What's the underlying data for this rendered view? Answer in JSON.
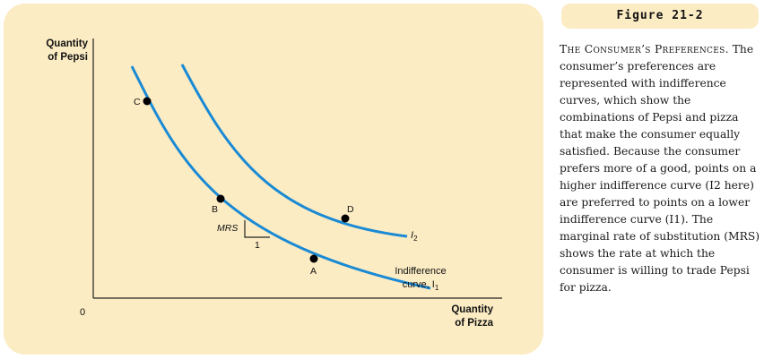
{
  "figure": {
    "header": "Figure 21-2",
    "caption_title": "The Consumer’s Preferences.",
    "caption_text": "The consumer’s preferences are represented with indifference curves, which show the combinations of Pepsi and pizza that make the consumer equally satisfied. Because the consumer prefers more of a good, points on a higher indifference curve (I2 here) are preferred to points on a lower indifference curve (I1). The marginal rate of substitution (MRS) shows the rate at which the consumer is willing to trade Pepsi for pizza."
  },
  "diagram": {
    "y_axis_label": "Quantity\nof Pepsi",
    "x_axis_label": "Quantity\nof Pizza",
    "origin_label": "0",
    "curves": [
      {
        "id": "I1",
        "label_line1": "Indifference",
        "label_line2": "curve, I",
        "subscript": "1"
      },
      {
        "id": "I2",
        "label": "I",
        "subscript": "2"
      }
    ],
    "points": [
      {
        "name": "C",
        "curve": "I1"
      },
      {
        "name": "B",
        "curve": "I1"
      },
      {
        "name": "A",
        "curve": "I1"
      },
      {
        "name": "D",
        "curve": "I2"
      }
    ],
    "mrs_label": "MRS",
    "mrs_run_label": "1",
    "colors": {
      "curve": "#1a8ad4",
      "panel": "#fcecc4",
      "axis": "#222222",
      "point": "#000000"
    }
  }
}
